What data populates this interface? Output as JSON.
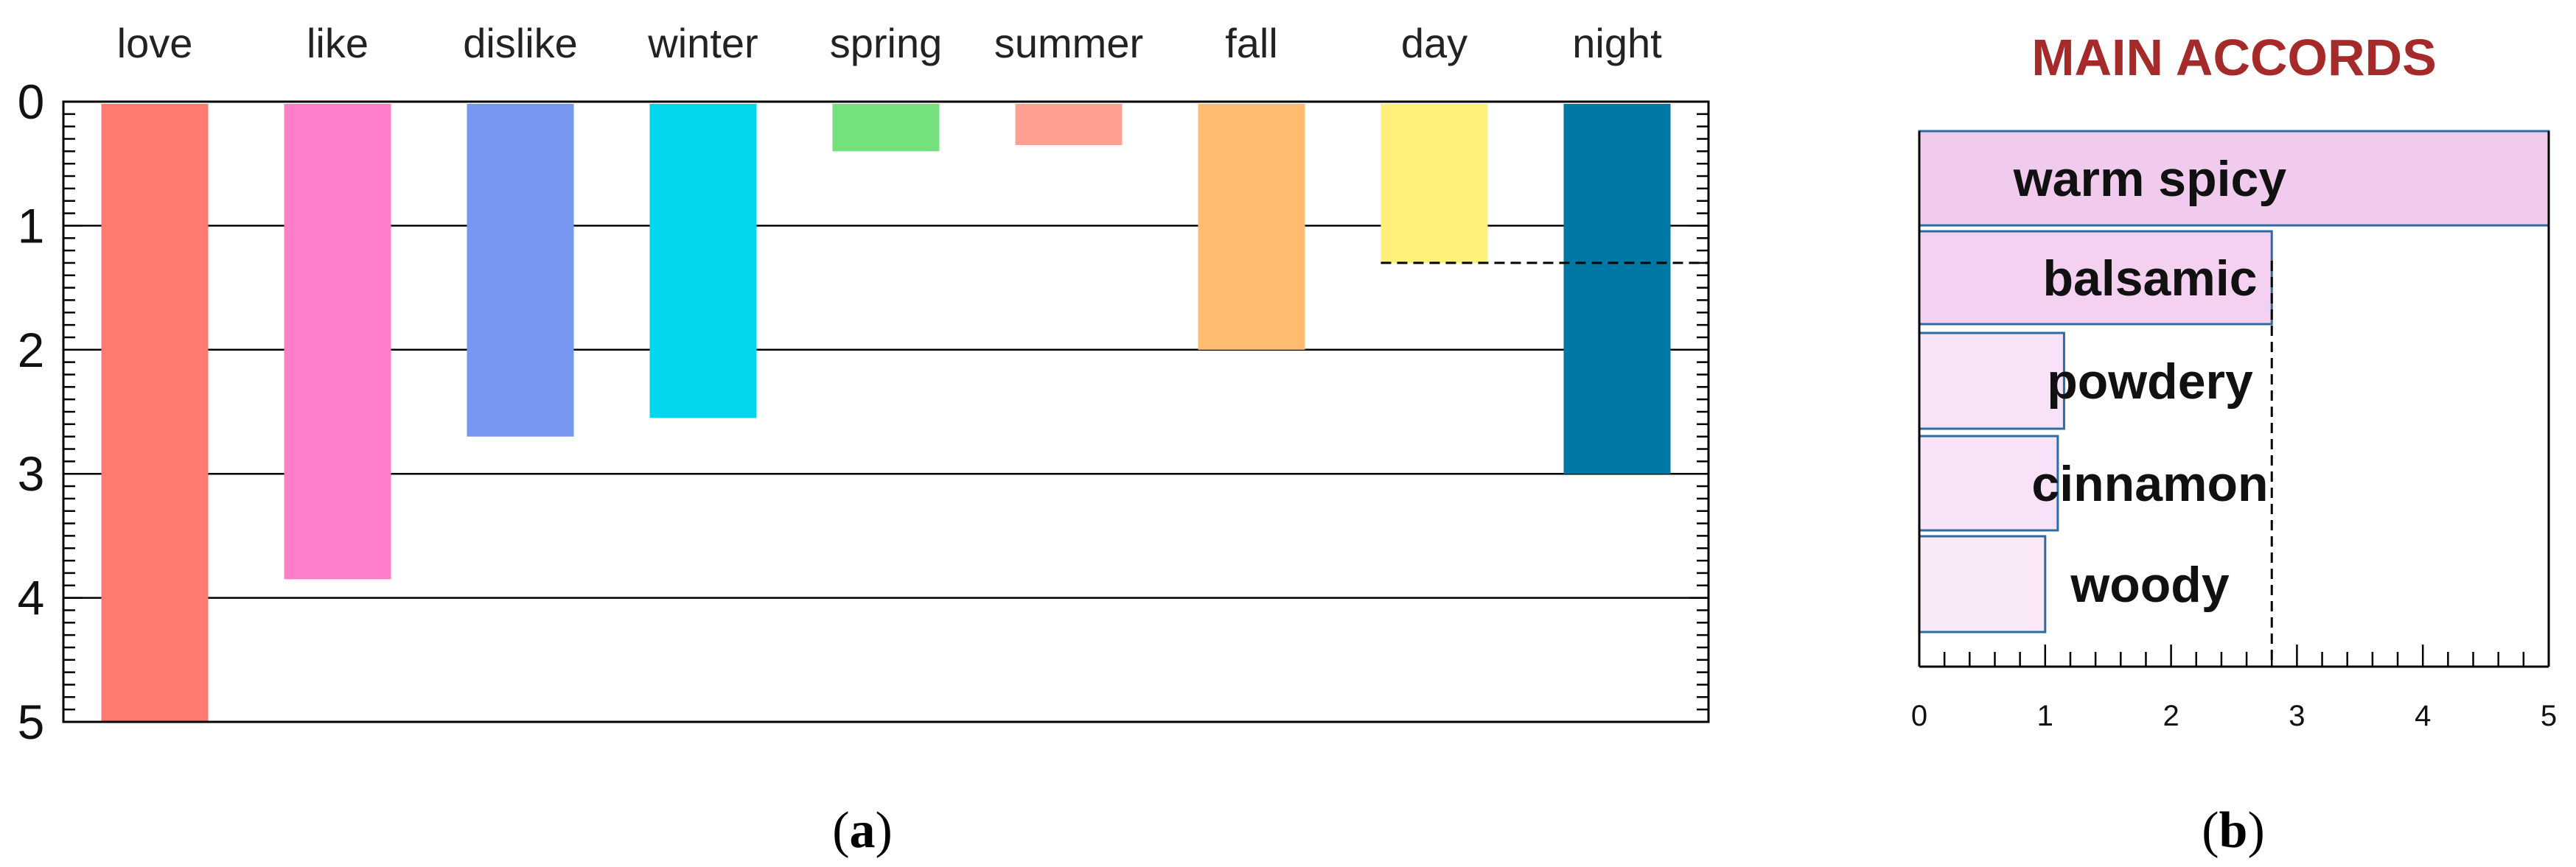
{
  "chart_data": [
    {
      "type": "bar",
      "panel_label": {
        "open": "(",
        "letter": "a",
        "close": ")"
      },
      "orientation": "vertical-downward",
      "categories": [
        "love",
        "like",
        "dislike",
        "winter",
        "spring",
        "summer",
        "fall",
        "day",
        "night"
      ],
      "values": [
        5.0,
        3.85,
        2.7,
        2.55,
        0.4,
        0.35,
        2.0,
        1.3,
        3.0
      ],
      "colors": [
        "#ff7a70",
        "#ff7ec9",
        "#7796ef",
        "#00d6ec",
        "#74e07e",
        "#ff9f92",
        "#ffbb6f",
        "#fff07c",
        "#0078a6"
      ],
      "y_ticks": [
        "0",
        "1",
        "2",
        "3",
        "4",
        "5"
      ],
      "ylim": [
        0,
        5
      ],
      "y_inverted": true,
      "grid": "horizontal",
      "reference_line": {
        "value": 1.3,
        "style": "dashed",
        "from_category": "day"
      }
    },
    {
      "type": "bar",
      "panel_label": {
        "open": "(",
        "letter": "b",
        "close": ")"
      },
      "orientation": "horizontal",
      "title": "MAIN ACCORDS",
      "title_color": "#a52a2a",
      "categories": [
        "warm spicy",
        "balsamic",
        "powdery",
        "cinnamon",
        "woody"
      ],
      "values": [
        5.0,
        2.8,
        1.15,
        1.1,
        1.0
      ],
      "colors": [
        "#f1cbee",
        "#f4d0f1",
        "#f8e2f7",
        "#f8e2f7",
        "#f9e8f8"
      ],
      "border_color": "#2d6ca2",
      "x_ticks": [
        "0",
        "1",
        "2",
        "3",
        "4",
        "5"
      ],
      "xlim": [
        0,
        5
      ],
      "reference_line": {
        "value": 2.8,
        "style": "dashed"
      }
    }
  ]
}
